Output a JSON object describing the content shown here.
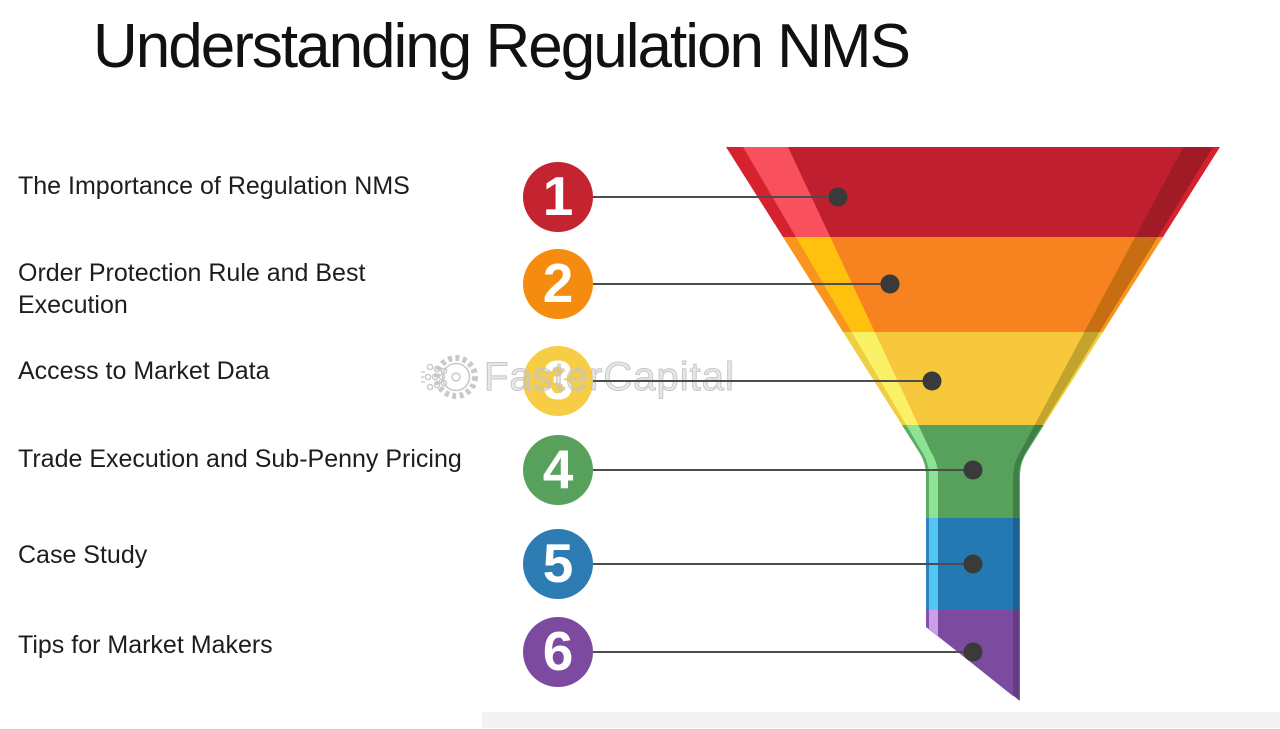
{
  "title": "Understanding Regulation NMS",
  "watermark": {
    "brand": "FasterCapital",
    "outline_color": "#c6c6c6"
  },
  "connector": {
    "line_color": "#4d4d4d",
    "dot_color": "#3a3a3a"
  },
  "footer_bar_color": "#f2f2f2",
  "items": [
    {
      "number": "1",
      "label": "The Importance of Regulation NMS",
      "color_name": "red",
      "circle_color": "#C32430",
      "band": {
        "medium": "#D6212F",
        "dark": "#A01B25",
        "light": "#F8505C",
        "main": "#BF1F2E"
      }
    },
    {
      "number": "2",
      "label": "Order Protection Rule and Best Execution",
      "color_name": "orange",
      "circle_color": "#F68C0F",
      "band": {
        "medium": "#F9941F",
        "dark": "#C76E12",
        "light": "#FFC10E",
        "main": "#F68220"
      }
    },
    {
      "number": "3",
      "label": "Access to Market Data",
      "color_name": "yellow",
      "circle_color": "#F7CD45",
      "band": {
        "medium": "#EFCE44",
        "dark": "#C2A42C",
        "light": "#FBF167",
        "main": "#F7C73C"
      }
    },
    {
      "number": "4",
      "label": "Trade Execution and Sub-Penny Pricing",
      "color_name": "green",
      "circle_color": "#57A15C",
      "band": {
        "medium": "#5FAB63",
        "dark": "#3F8046",
        "light": "#8CE394",
        "main": "#57A15C"
      }
    },
    {
      "number": "5",
      "label": "Case Study",
      "color_name": "blue",
      "circle_color": "#2E7CB4",
      "band": {
        "medium": "#2C83BD",
        "dark": "#1D6292",
        "light": "#52C6F2",
        "main": "#2579B2"
      }
    },
    {
      "number": "6",
      "label": "Tips for Market Makers",
      "color_name": "purple",
      "circle_color": "#7C4BA0",
      "band": {
        "medium": "#8352A8",
        "dark": "#643B84",
        "light": "#C9A0E8",
        "main": "#7B4BA0"
      }
    }
  ]
}
